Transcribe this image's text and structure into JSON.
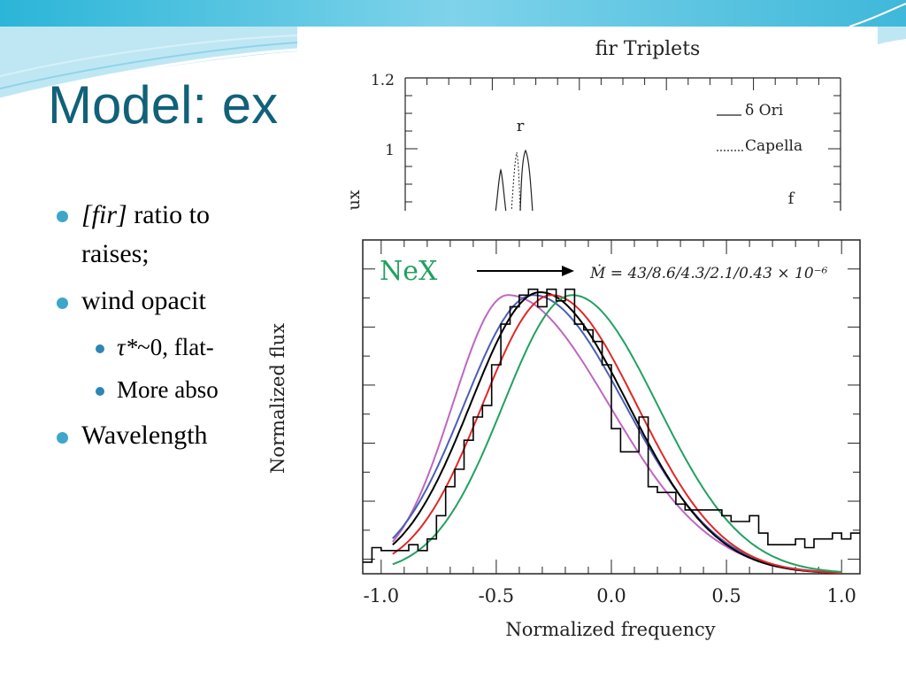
{
  "slide": {
    "title": "Model: ex",
    "bullets": [
      {
        "level": 1,
        "line1_italic": "[fir]",
        "line1_rest": " ratio to ",
        "line2": "raises;"
      },
      {
        "level": 1,
        "text": "wind opacit"
      },
      {
        "level": 2,
        "text": "~0, flat-",
        "math": "τ*"
      },
      {
        "level": 2,
        "text": "More abso"
      },
      {
        "level": 1,
        "text": "Wavelength"
      }
    ]
  },
  "colors": {
    "title": "#11617a",
    "bullet_level1": "#3ea7c9",
    "bullet_level2": "#2e86b5",
    "data_hist": "#000000",
    "model_black": "#000000",
    "model_blue": "#4a5fb5",
    "model_magenta": "#c066c0",
    "model_red": "#e02828",
    "model_green": "#22a060"
  },
  "chart_data": [
    {
      "type": "line",
      "title": "fir Triplets",
      "ylabel": "ux",
      "yticks": [
        "1.2",
        "1"
      ],
      "line_labels": [
        "r",
        "f"
      ],
      "legend": [
        {
          "name": "δ Ori",
          "style": "solid"
        },
        {
          "name": "Capella",
          "style": "dotted"
        }
      ]
    },
    {
      "type": "line",
      "annotation_label": "NeX",
      "annotation": "Ṁ = 43/8.6/4.3/2.1/0.43 × 10⁻⁶",
      "xlabel": "Normalized frequency",
      "ylabel": "Normalized flux",
      "xlim": [
        -1.08,
        1.08
      ],
      "ylim": [
        0,
        1.15
      ],
      "xticks": [
        "-1.0",
        "-0.5",
        "0.0",
        "0.5",
        "1.0"
      ],
      "xtick_values": [
        -1.0,
        -0.5,
        0.0,
        0.5,
        1.0
      ],
      "histogram": {
        "edges": [
          -1.08,
          -1.04,
          -1.0,
          -0.96,
          -0.92,
          -0.88,
          -0.84,
          -0.8,
          -0.76,
          -0.72,
          -0.68,
          -0.64,
          -0.6,
          -0.56,
          -0.52,
          -0.48,
          -0.44,
          -0.4,
          -0.36,
          -0.32,
          -0.28,
          -0.24,
          -0.2,
          -0.16,
          -0.12,
          -0.08,
          -0.04,
          0.0,
          0.04,
          0.08,
          0.12,
          0.16,
          0.2,
          0.24,
          0.28,
          0.32,
          0.36,
          0.4,
          0.44,
          0.48,
          0.52,
          0.56,
          0.6,
          0.64,
          0.68,
          0.72,
          0.76,
          0.8,
          0.84,
          0.88,
          0.92,
          0.96,
          1.0,
          1.04,
          1.08
        ],
        "values": [
          0.04,
          0.09,
          0.08,
          0.08,
          0.08,
          0.1,
          0.08,
          0.12,
          0.2,
          0.3,
          0.36,
          0.46,
          0.54,
          0.58,
          0.72,
          0.86,
          0.92,
          0.96,
          0.98,
          0.92,
          0.98,
          0.94,
          0.98,
          0.86,
          0.84,
          0.8,
          0.72,
          0.5,
          0.42,
          0.42,
          0.54,
          0.3,
          0.28,
          0.28,
          0.24,
          0.22,
          0.22,
          0.22,
          0.22,
          0.2,
          0.18,
          0.18,
          0.2,
          0.14,
          0.1,
          0.1,
          0.1,
          0.12,
          0.09,
          0.12,
          0.12,
          0.14,
          0.12,
          0.14
        ]
      },
      "series": [
        {
          "color": "magenta",
          "shape": "skewed",
          "center": -0.45,
          "width_left": 0.24,
          "width_right": 0.44,
          "peak": 0.96,
          "start_x": -0.95
        },
        {
          "color": "blue",
          "shape": "skewed",
          "center": -0.34,
          "width_left": 0.3,
          "width_right": 0.4,
          "peak": 0.96,
          "start_x": -0.95
        },
        {
          "color": "black",
          "shape": "skewed",
          "center": -0.31,
          "width_left": 0.3,
          "width_right": 0.38,
          "peak": 0.97,
          "start_x": -0.95
        },
        {
          "color": "red",
          "shape": "skewed",
          "center": -0.26,
          "width_left": 0.3,
          "width_right": 0.37,
          "peak": 0.96,
          "start_x": -0.95
        },
        {
          "color": "green",
          "shape": "skewed",
          "center": -0.17,
          "width_left": 0.3,
          "width_right": 0.37,
          "peak": 0.96,
          "start_x": -0.95
        }
      ]
    }
  ]
}
